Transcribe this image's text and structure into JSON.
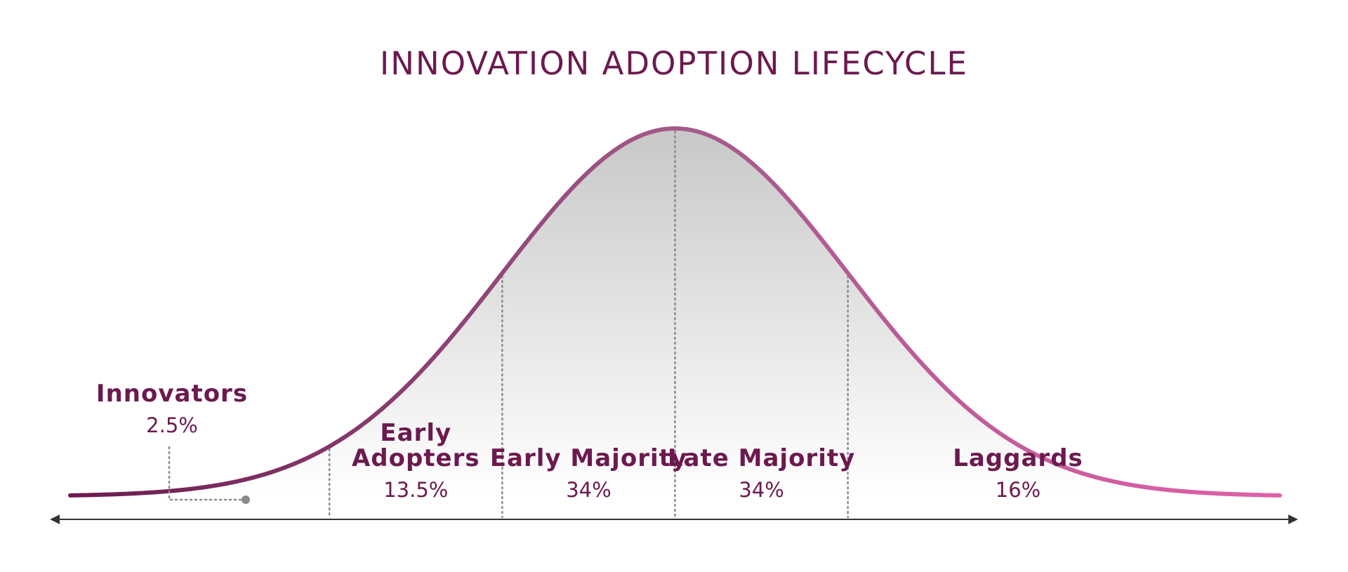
{
  "title": "INNOVATION ADOPTION LIFECYCLE",
  "chart_data": {
    "type": "area",
    "distribution": "normal",
    "x_unit": "standard deviations from mean",
    "xlim": [
      -3.5,
      3.5
    ],
    "boundaries": [
      -2,
      -1,
      0,
      1
    ],
    "segments": [
      {
        "name": "Innovators",
        "lines": [
          "Innovators"
        ],
        "percent": "2.5%",
        "value": 2.5
      },
      {
        "name": "Early Adopters",
        "lines": [
          "Early",
          "Adopters"
        ],
        "percent": "13.5%",
        "value": 13.5
      },
      {
        "name": "Early Majority",
        "lines": [
          "Early Majority"
        ],
        "percent": "34%",
        "value": 34
      },
      {
        "name": "Late Majority",
        "lines": [
          "Late Majority"
        ],
        "percent": "34%",
        "value": 34
      },
      {
        "name": "Laggards",
        "lines": [
          "Laggards"
        ],
        "percent": "16%",
        "value": 16
      }
    ],
    "grid": false,
    "legend": "none",
    "colors": {
      "title": "#6b1a4f",
      "curve_start": "#6b1a4f",
      "curve_mid": "#a35a8a",
      "curve_end": "#e060a8",
      "fill_top": "#c8c8c8",
      "fill_bottom": "#ffffff",
      "guide": "#8a8a8a",
      "axis": "#333333"
    }
  }
}
